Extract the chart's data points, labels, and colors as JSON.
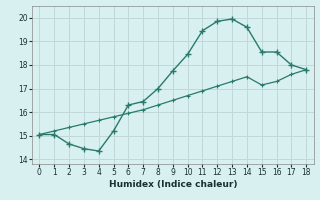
{
  "xlabel": "Humidex (Indice chaleur)",
  "bg_color": "#d8f0f0",
  "grid_color": "#c0d8d8",
  "line_color": "#2a7a6a",
  "xlim": [
    -0.5,
    18.5
  ],
  "ylim": [
    13.8,
    20.5
  ],
  "xticks": [
    0,
    1,
    2,
    3,
    4,
    5,
    6,
    7,
    8,
    9,
    10,
    11,
    12,
    13,
    14,
    15,
    16,
    17,
    18
  ],
  "yticks": [
    14,
    15,
    16,
    17,
    18,
    19,
    20
  ],
  "curve1_x": [
    0,
    1,
    2,
    3,
    4,
    5,
    6,
    7,
    8,
    9,
    10,
    11,
    12,
    13,
    14,
    15,
    16,
    17,
    18
  ],
  "curve1_y": [
    15.05,
    15.05,
    14.65,
    14.45,
    14.35,
    15.2,
    16.3,
    16.45,
    17.0,
    17.75,
    18.45,
    19.45,
    19.85,
    19.95,
    19.6,
    18.55,
    18.55,
    18.0,
    17.8
  ],
  "curve2_x": [
    0,
    1,
    2,
    3,
    4,
    5,
    6,
    7,
    8,
    9,
    10,
    11,
    12,
    13,
    14,
    15,
    16,
    17,
    18
  ],
  "curve2_y": [
    15.05,
    15.2,
    15.35,
    15.5,
    15.65,
    15.8,
    15.95,
    16.1,
    16.3,
    16.5,
    16.7,
    16.9,
    17.1,
    17.3,
    17.5,
    17.15,
    17.3,
    17.6,
    17.8
  ]
}
